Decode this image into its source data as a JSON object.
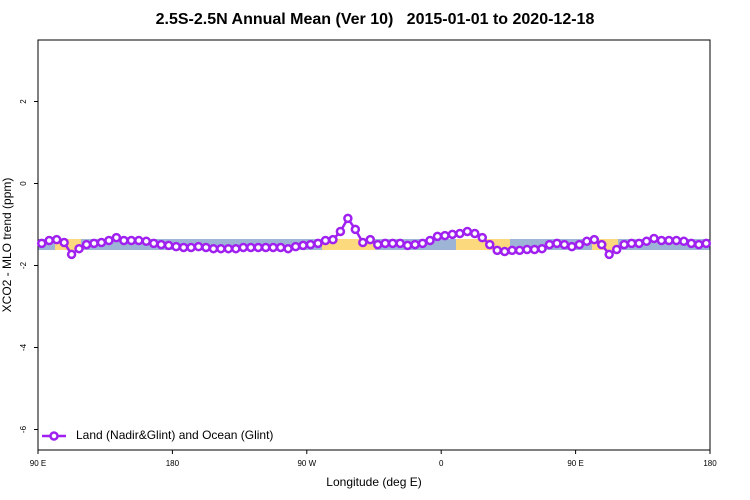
{
  "chart_data": {
    "type": "line",
    "title": "2.5S-2.5N Annual Mean (Ver 10)   2015-01-01 to 2020-12-18",
    "x_label": "Longitude (deg E)",
    "y_label": "XCO2 - MLO trend (ppm)",
    "xlim": [
      90,
      540
    ],
    "xticks": [
      {
        "value": 90,
        "label": "90 E"
      },
      180,
      {
        "value": 270,
        "label": "90 W"
      },
      {
        "value": 360,
        "label": "0"
      },
      {
        "value": 450,
        "label": "90 E"
      },
      {
        "value": 540,
        "label": "180"
      }
    ],
    "ylim": [
      -6.5,
      3.5
    ],
    "yticks": [
      2,
      0,
      -2,
      -4,
      -6
    ],
    "legend": "bottom-left",
    "x": [
      92.5,
      97.5,
      102.5,
      107.5,
      112.5,
      117.5,
      122.5,
      127.5,
      132.5,
      137.5,
      142.5,
      147.5,
      152.5,
      157.5,
      162.5,
      167.5,
      172.5,
      177.5,
      182.5,
      187.5,
      192.5,
      197.5,
      202.5,
      207.5,
      212.5,
      217.5,
      222.5,
      227.5,
      232.5,
      237.5,
      242.5,
      247.5,
      252.5,
      257.5,
      262.5,
      267.5,
      272.5,
      277.5,
      282.5,
      287.5,
      292.5,
      297.5,
      302.5,
      307.5,
      312.5,
      317.5,
      322.5,
      327.5,
      332.5,
      337.5,
      342.5,
      347.5,
      352.5,
      357.5,
      362.5,
      367.5,
      372.5,
      377.5,
      382.5,
      387.5,
      392.5,
      397.5,
      402.5,
      407.5,
      412.5,
      417.5,
      422.5,
      427.5,
      432.5,
      437.5,
      442.5,
      447.5,
      452.5,
      457.5,
      462.5,
      467.5,
      472.5,
      477.5,
      482.5,
      487.5,
      492.5,
      497.5,
      502.5,
      507.5,
      512.5,
      517.5,
      522.5,
      527.5,
      532.5,
      537.5
    ],
    "series": [
      {
        "name": "Land (Nadir&Glint) and Ocean (Glint)",
        "color": "#a020f0",
        "values": [
          -1.46,
          -1.39,
          -1.37,
          -1.44,
          -1.73,
          -1.59,
          -1.49,
          -1.46,
          -1.44,
          -1.39,
          -1.32,
          -1.39,
          -1.39,
          -1.39,
          -1.41,
          -1.46,
          -1.49,
          -1.51,
          -1.54,
          -1.56,
          -1.56,
          -1.54,
          -1.56,
          -1.59,
          -1.59,
          -1.59,
          -1.59,
          -1.56,
          -1.56,
          -1.56,
          -1.56,
          -1.56,
          -1.56,
          -1.59,
          -1.54,
          -1.51,
          -1.49,
          -1.46,
          -1.39,
          -1.37,
          -1.17,
          -0.85,
          -1.12,
          -1.44,
          -1.37,
          -1.49,
          -1.46,
          -1.46,
          -1.46,
          -1.51,
          -1.49,
          -1.46,
          -1.39,
          -1.29,
          -1.27,
          -1.24,
          -1.22,
          -1.17,
          -1.22,
          -1.32,
          -1.49,
          -1.63,
          -1.66,
          -1.63,
          -1.63,
          -1.61,
          -1.61,
          -1.59,
          -1.49,
          -1.46,
          -1.49,
          -1.54,
          -1.49,
          -1.41,
          -1.37,
          -1.49,
          -1.73,
          -1.61,
          -1.49,
          -1.46,
          -1.46,
          -1.41,
          -1.34,
          -1.39,
          -1.39,
          -1.39,
          -1.41,
          -1.46,
          -1.49,
          -1.46
        ]
      }
    ]
  }
}
